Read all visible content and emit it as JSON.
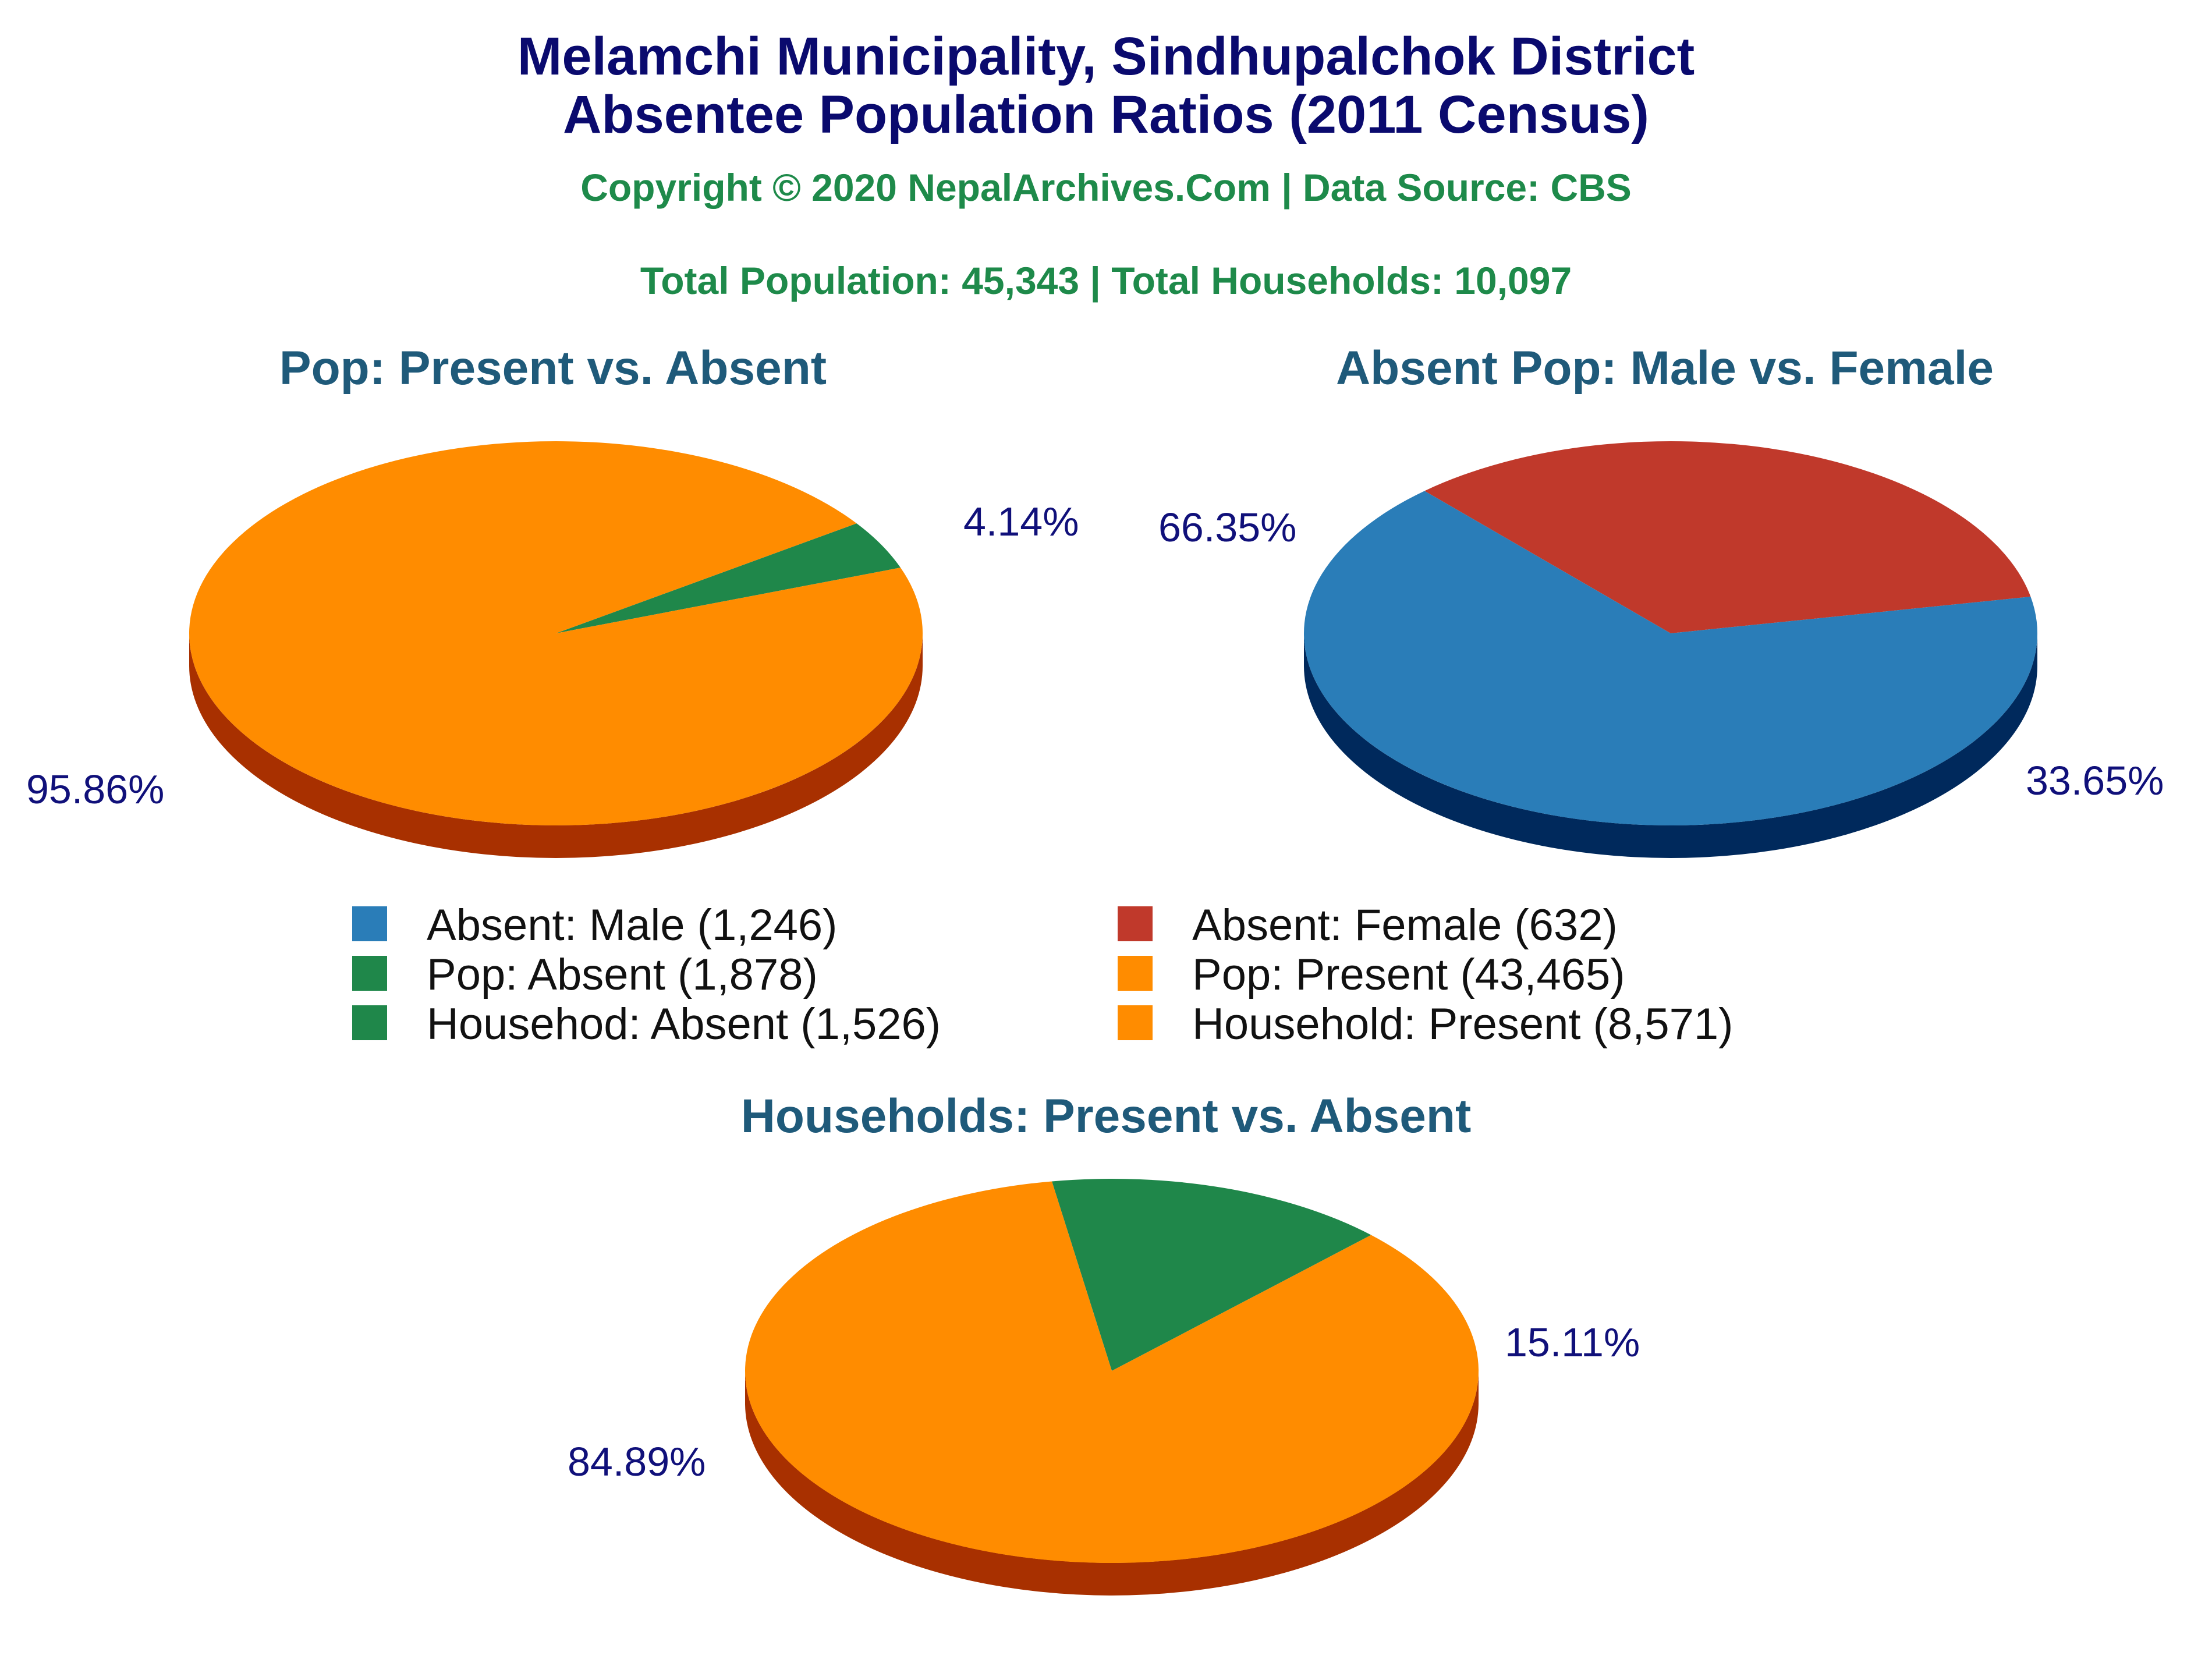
{
  "header": {
    "title_line1": "Melamchi Municipality, Sindhupalchok District",
    "title_line2": "Absentee Population Ratios (2011 Census)",
    "copyright": "Copyright © 2020 NepalArchives.Com | Data Source: CBS",
    "totals": "Total Population: 45,343 | Total Households: 10,097"
  },
  "legend": [
    {
      "label": "Absent: Male (1,246)",
      "color": "#2a7db8"
    },
    {
      "label": "Absent: Female (632)",
      "color": "#c0392b"
    },
    {
      "label": "Pop: Absent (1,878)",
      "color": "#1f874a"
    },
    {
      "label": "Pop: Present (43,465)",
      "color": "#ff8c00"
    },
    {
      "label": "Househod: Absent (1,526)",
      "color": "#1f874a"
    },
    {
      "label": "Household: Present (8,571)",
      "color": "#ff8c00"
    }
  ],
  "chart_data": [
    {
      "type": "pie",
      "title": "Pop: Present vs. Absent",
      "slices": [
        {
          "name": "Pop: Absent",
          "value": 1878,
          "label": "4.14%",
          "color": "#1f874a",
          "side": "#0d3d1f"
        },
        {
          "name": "Pop: Present",
          "value": 43465,
          "label": "95.86%",
          "color": "#ff8c00",
          "side": "#a83000"
        }
      ]
    },
    {
      "type": "pie",
      "title": "Absent Pop: Male vs. Female",
      "slices": [
        {
          "name": "Absent: Female",
          "value": 632,
          "label": "33.65%",
          "color": "#c0392b",
          "side": "#5e0000"
        },
        {
          "name": "Absent: Male",
          "value": 1246,
          "label": "66.35%",
          "color": "#2a7db8",
          "side": "#00295c"
        }
      ]
    },
    {
      "type": "pie",
      "title": "Households: Present vs. Absent",
      "slices": [
        {
          "name": "Househod: Absent",
          "value": 1526,
          "label": "15.11%",
          "color": "#1f874a",
          "side": "#0d3d1f"
        },
        {
          "name": "Household: Present",
          "value": 8571,
          "label": "84.89%",
          "color": "#ff8c00",
          "side": "#a83000"
        }
      ]
    }
  ]
}
